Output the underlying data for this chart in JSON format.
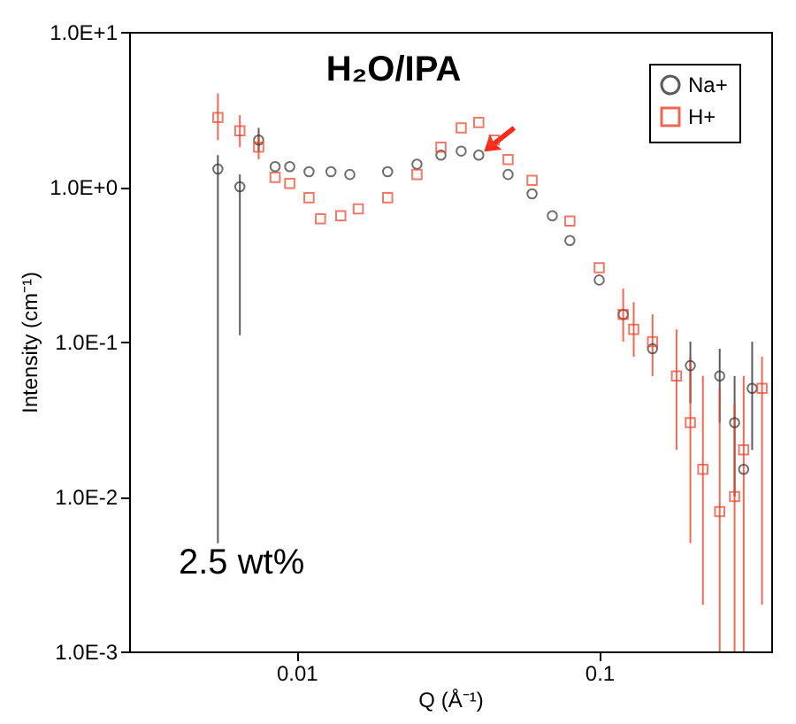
{
  "chart_data": {
    "type": "scatter",
    "xlabel": "Q (Å⁻¹)",
    "ylabel": "Intensity (cm⁻¹)",
    "log": "xy",
    "xlim": [
      0.0028,
      0.37
    ],
    "ylim": [
      0.001,
      10
    ],
    "xticks": [
      0.01,
      0.1
    ],
    "yticks": [
      {
        "value": 0.001,
        "label": "1.0E-3"
      },
      {
        "value": 0.01,
        "label": "1.0E-2"
      },
      {
        "value": 0.1,
        "label": "1.0E-1"
      },
      {
        "value": 1,
        "label": "1.0E+0"
      },
      {
        "value": 10,
        "label": "1.0E+1"
      }
    ],
    "legend": "top right",
    "grid": false,
    "annotations": [
      {
        "text": "H₂O/IPA",
        "x": 0.04,
        "y": 1.6
      },
      "2.5 wt%"
    ],
    "series": [
      {
        "name": "Na+",
        "color": "#333333",
        "marker": "circle",
        "x": [
          0.0055,
          0.0065,
          0.0075,
          0.0085,
          0.0095,
          0.011,
          0.013,
          0.015,
          0.02,
          0.025,
          0.03,
          0.035,
          0.04,
          0.05,
          0.06,
          0.07,
          0.08,
          0.1,
          0.12,
          0.15,
          0.2,
          0.25,
          0.28,
          0.3,
          0.32
        ],
        "values": [
          1.3,
          1.0,
          2.0,
          1.35,
          1.35,
          1.25,
          1.25,
          1.2,
          1.25,
          1.4,
          1.6,
          1.7,
          1.6,
          1.2,
          0.9,
          0.65,
          0.45,
          0.25,
          0.15,
          0.09,
          0.07,
          0.06,
          0.03,
          0.015,
          0.05
        ],
        "errors": [
          [
            0.005,
            1.6
          ],
          [
            0.11,
            1.2
          ],
          [
            1.7,
            2.4
          ],
          null,
          null,
          null,
          null,
          null,
          null,
          null,
          null,
          null,
          null,
          null,
          null,
          null,
          null,
          null,
          null,
          null,
          [
            0.04,
            0.1
          ],
          [
            0.03,
            0.09
          ],
          [
            0.01,
            0.06
          ],
          null,
          [
            0.02,
            0.1
          ]
        ]
      },
      {
        "name": "H+",
        "color": "#e8432a",
        "marker": "square",
        "x": [
          0.0055,
          0.0065,
          0.0075,
          0.0085,
          0.0095,
          0.011,
          0.012,
          0.014,
          0.016,
          0.02,
          0.025,
          0.03,
          0.035,
          0.04,
          0.045,
          0.05,
          0.06,
          0.08,
          0.1,
          0.12,
          0.13,
          0.15,
          0.18,
          0.2,
          0.22,
          0.25,
          0.28,
          0.3,
          0.345
        ],
        "values": [
          2.8,
          2.3,
          1.8,
          1.15,
          1.05,
          0.85,
          0.62,
          0.65,
          0.72,
          0.85,
          1.2,
          1.8,
          2.4,
          2.6,
          2.0,
          1.5,
          1.1,
          0.6,
          0.3,
          0.15,
          0.12,
          0.1,
          0.06,
          0.03,
          0.015,
          0.008,
          0.01,
          0.02,
          0.05
        ],
        "errors": [
          [
            2.0,
            4.0
          ],
          [
            1.8,
            2.9
          ],
          [
            1.5,
            2.2
          ],
          null,
          null,
          null,
          null,
          null,
          null,
          null,
          null,
          null,
          null,
          null,
          null,
          null,
          null,
          null,
          null,
          [
            0.1,
            0.22
          ],
          [
            0.08,
            0.18
          ],
          [
            0.06,
            0.15
          ],
          [
            0.02,
            0.12
          ],
          [
            0.005,
            0.08
          ],
          [
            0.002,
            0.06
          ],
          [
            0.001,
            0.05
          ],
          [
            0.001,
            0.04
          ],
          [
            0.001,
            0.06
          ],
          [
            0.002,
            0.08
          ]
        ]
      }
    ]
  }
}
